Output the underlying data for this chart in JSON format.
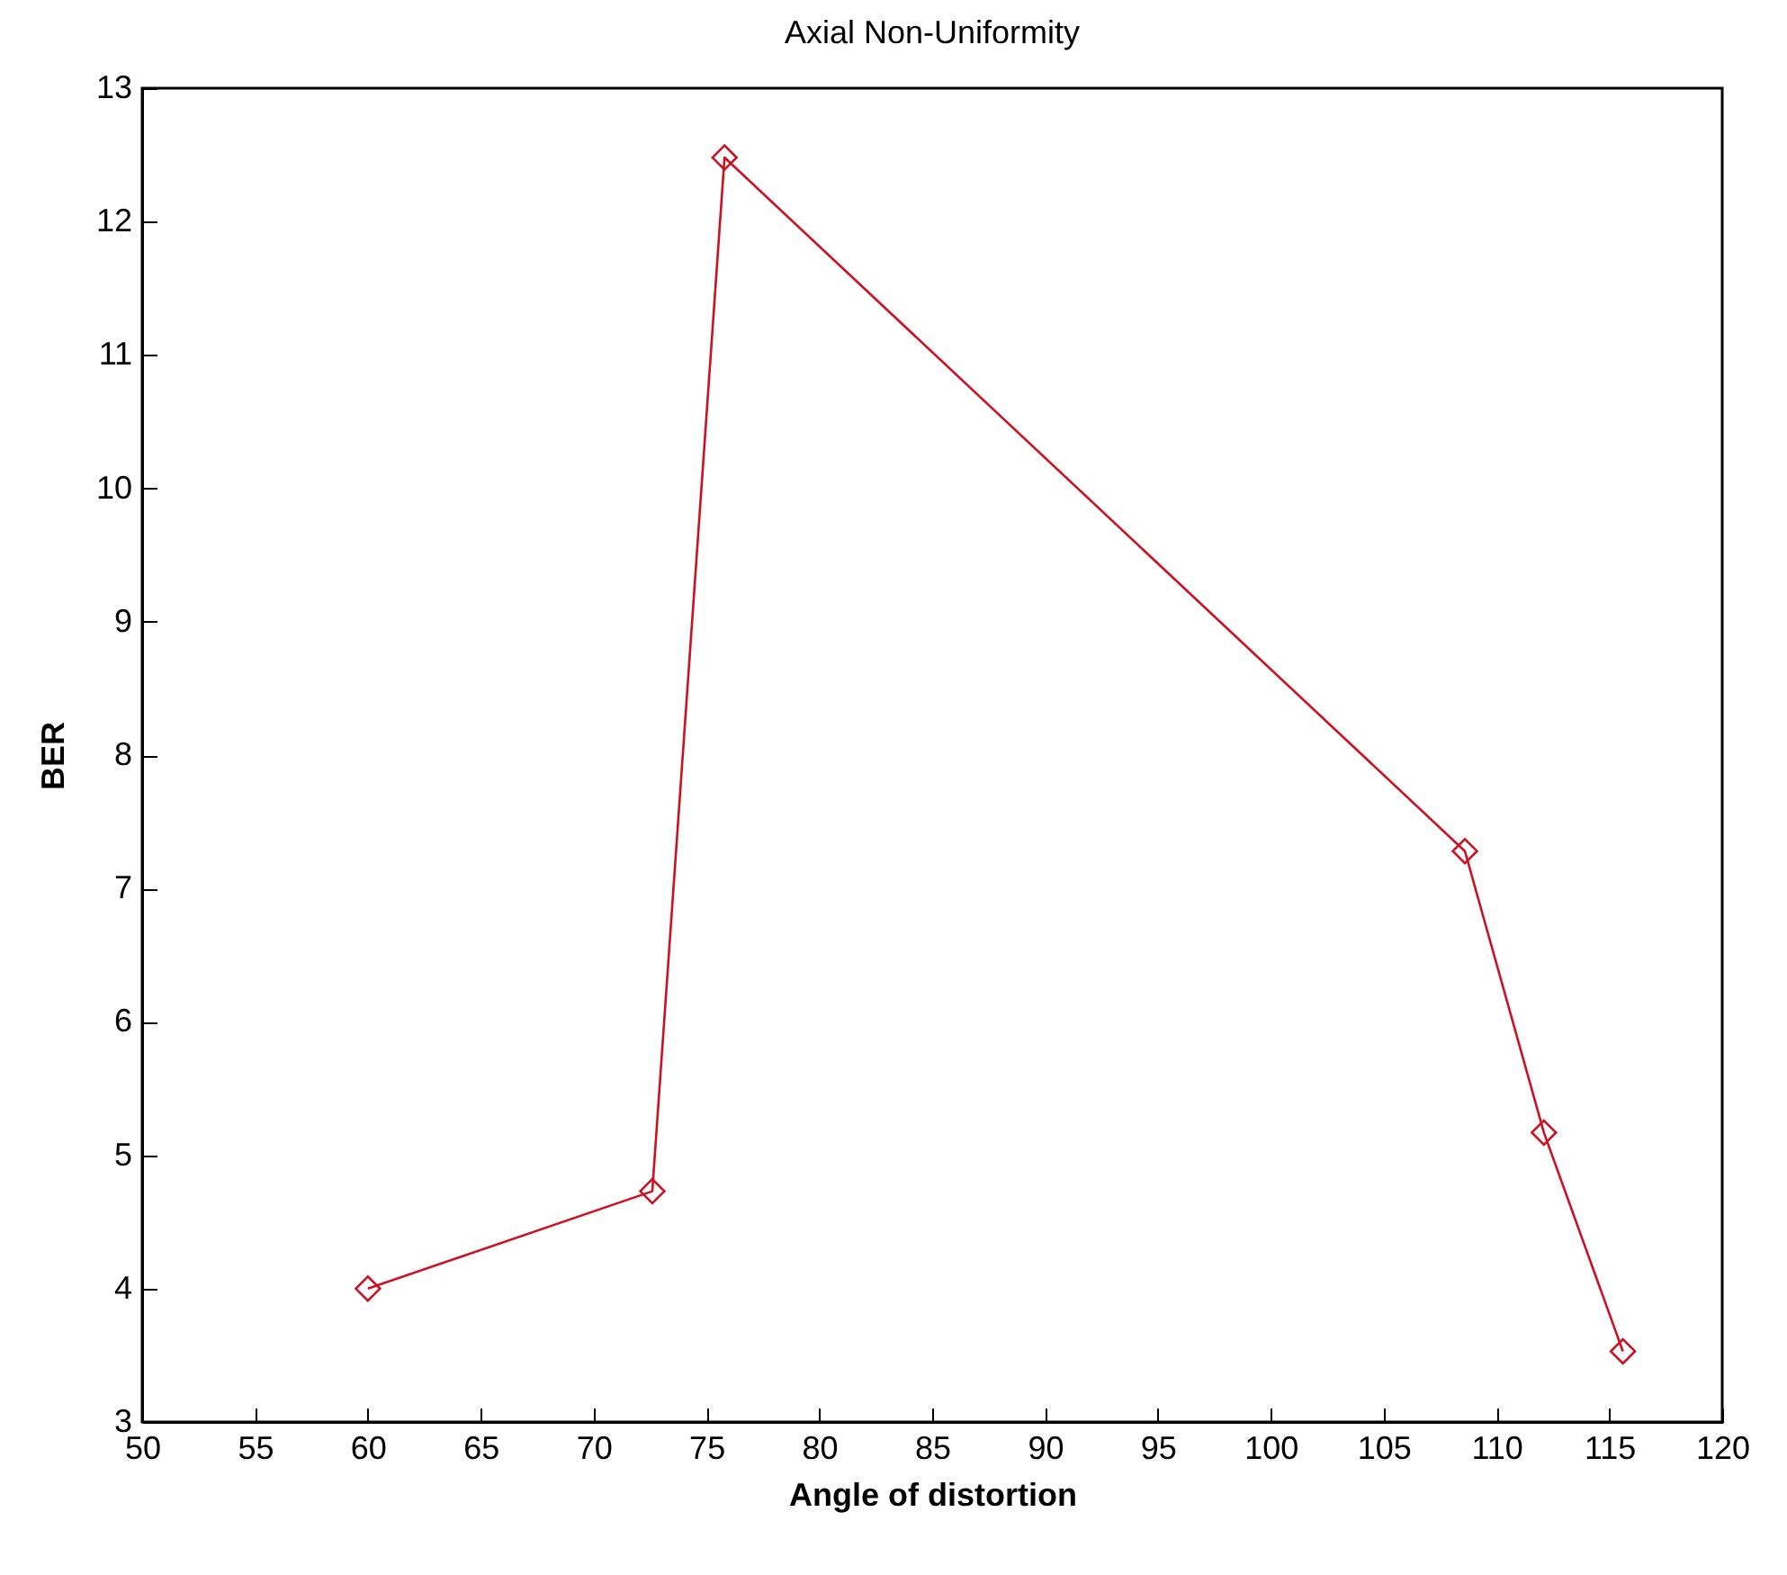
{
  "chart_data": {
    "type": "line",
    "title": "Axial Non-Uniformity",
    "xlabel": "Angle of distortion",
    "ylabel": "BER",
    "x": [
      60,
      72.6,
      75.8,
      108.6,
      112.1,
      115.6
    ],
    "series": [
      {
        "color": "#cc1122",
        "values": [
          4.0,
          4.73,
          12.48,
          7.28,
          5.17,
          3.53
        ]
      }
    ],
    "xlim": [
      50,
      120
    ],
    "xticks": [
      50,
      55,
      60,
      65,
      70,
      75,
      80,
      85,
      90,
      95,
      100,
      105,
      110,
      115,
      120
    ],
    "ylim": [
      3,
      13
    ],
    "yticks": [
      3,
      4,
      5,
      6,
      7,
      8,
      9,
      10,
      11,
      12,
      13
    ],
    "grid": false,
    "marker": "diamond",
    "line_style": "solid"
  }
}
